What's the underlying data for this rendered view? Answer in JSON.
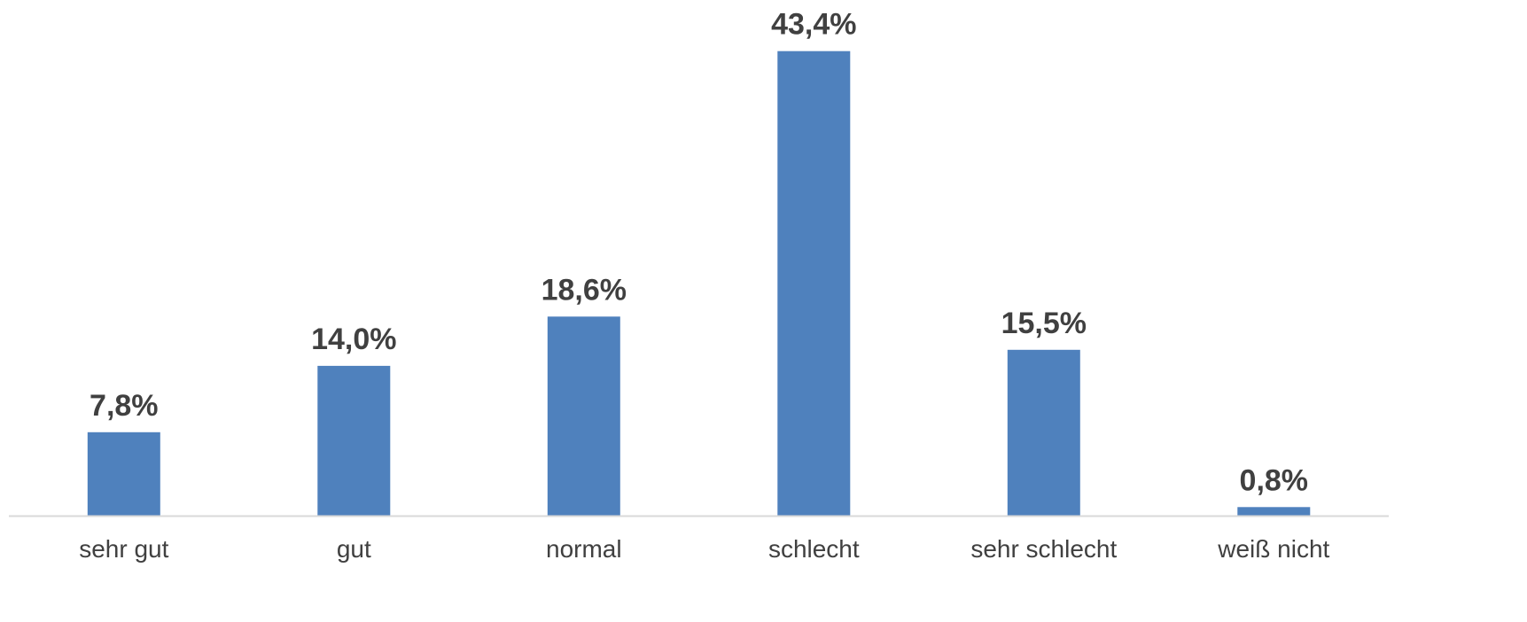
{
  "chart_data": {
    "type": "bar",
    "categories": [
      "sehr gut",
      "gut",
      "normal",
      "schlecht",
      "sehr schlecht",
      "weiß nicht"
    ],
    "values": [
      7.8,
      14.0,
      18.6,
      43.4,
      15.5,
      0.8
    ],
    "data_labels": [
      "7,8%",
      "14,0%",
      "18,6%",
      "43,4%",
      "15,5%",
      "0,8%"
    ],
    "title": "",
    "xlabel": "",
    "ylabel": "",
    "ylim": [
      0,
      45
    ],
    "grid": false,
    "legend": "none",
    "bar_color": "#4F81BD",
    "axis_color": "#D9D9D9",
    "label_color": "#404040"
  }
}
